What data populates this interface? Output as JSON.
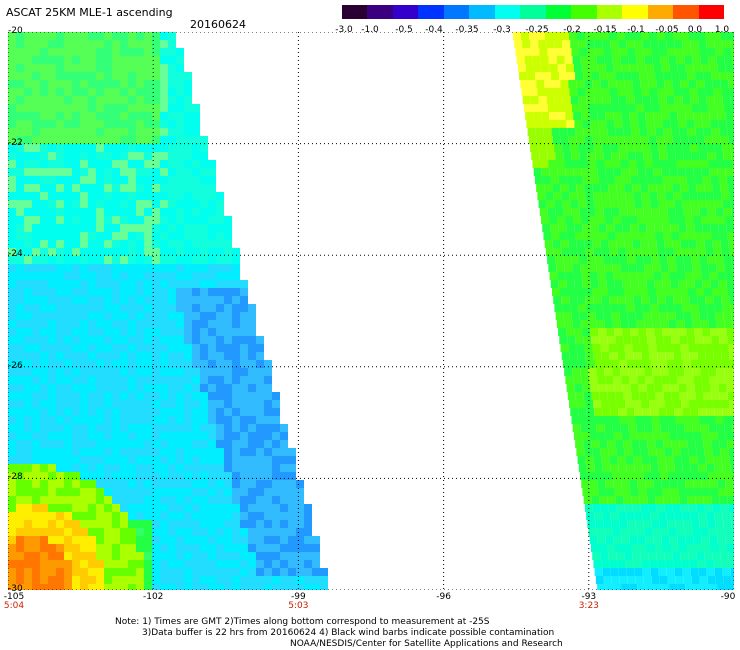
{
  "header": {
    "title": "ASCAT 25KM MLE-1 ascending",
    "date": "20160624"
  },
  "colorbar": {
    "tick_labels": [
      "-3.0",
      "-1.0",
      "-0.5",
      "-0.4",
      "-0.35",
      "-0.3",
      "-0.25",
      "-0.2",
      "-0.15",
      "-0.1",
      "-0.05",
      "0.0",
      "1.0"
    ],
    "colors": [
      "#2a0033",
      "#3a0080",
      "#3300cc",
      "#0033ff",
      "#0077ff",
      "#00bbff",
      "#00ffee",
      "#00ff99",
      "#00ff33",
      "#44ff00",
      "#aaff00",
      "#ffff00",
      "#ffaa00",
      "#ff5500",
      "#ff0000"
    ]
  },
  "map": {
    "lat_labels": [
      "-20",
      "-22",
      "-24",
      "-26",
      "-28",
      "-30"
    ],
    "lon_labels": [
      "-105",
      "-102",
      "-99",
      "-96",
      "-93",
      "-90"
    ],
    "time_labels": [
      {
        "text": "5:04",
        "lon": -105
      },
      {
        "text": "5:03",
        "lon": -99
      },
      {
        "text": "3:23",
        "lon": -93
      }
    ],
    "lat_range": [
      -30,
      -20
    ],
    "lon_range": [
      -105,
      -90
    ],
    "grid": "dotted"
  },
  "notes": {
    "line1": "Note: 1) Times are GMT 2)Times along bottom correspond to measurement at -25S",
    "line2": "3)Data buffer is 22 hrs from 20160624 4) Black wind barbs indicate possible contamination",
    "line3": "NOAA/NESDIS/Center for Satellite Applications and Research"
  }
}
